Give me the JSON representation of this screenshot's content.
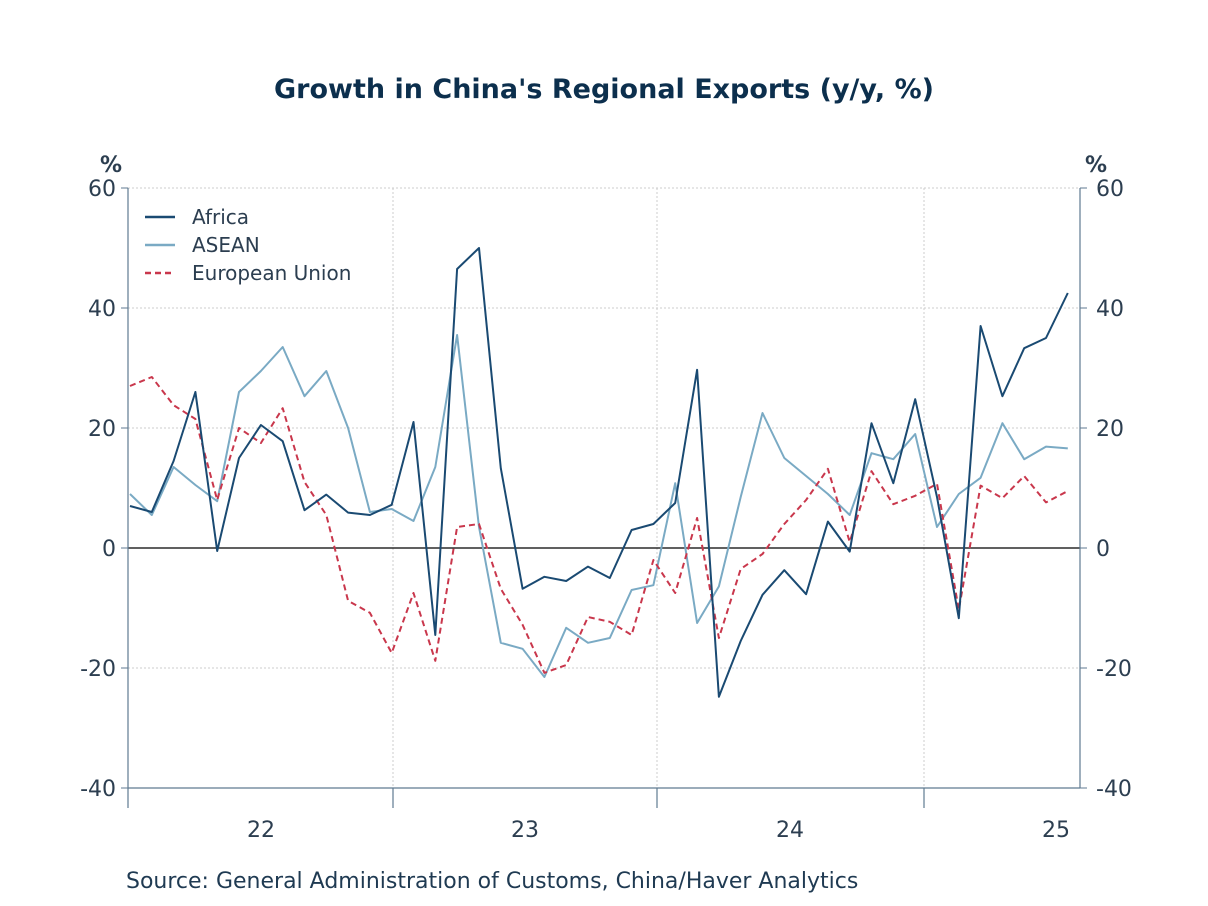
{
  "chart_data": {
    "type": "line",
    "title": "Growth in China's Regional Exports (y/y, %)",
    "ylabel_left": "%",
    "ylabel_right": "%",
    "ylim": [
      -40,
      60
    ],
    "yticks": [
      60,
      40,
      20,
      0,
      -20,
      -40
    ],
    "ytick_labels": [
      "60",
      "40",
      "20",
      "0",
      "-20",
      "-40"
    ],
    "x_ticks": [
      "22",
      "23",
      "24",
      "25"
    ],
    "grid": true,
    "legend_position": "top-left",
    "series": [
      {
        "name": "Africa",
        "color": "#1a4a72",
        "dash": "solid",
        "values": [
          7.0,
          6.0,
          14.5,
          26.0,
          -0.5,
          15.0,
          20.5,
          17.8,
          6.3,
          8.9,
          5.9,
          5.5,
          7.2,
          21.0,
          -14.5,
          46.5,
          50.0,
          13.3,
          -6.8,
          -4.8,
          -5.5,
          -3.1,
          -5.0,
          3.0,
          4.0,
          7.5,
          29.7,
          -24.8,
          -15.5,
          -7.8,
          -3.7,
          -7.7,
          4.4,
          -0.6,
          20.8,
          10.8,
          24.8,
          8.5,
          -11.7,
          37.0,
          25.3,
          33.3,
          35.0,
          42.5
        ]
      },
      {
        "name": "ASEAN",
        "color": "#7aaac4",
        "dash": "solid",
        "values": [
          9.0,
          5.5,
          13.5,
          10.5,
          7.8,
          26.0,
          29.5,
          33.5,
          25.3,
          29.5,
          20.0,
          6.0,
          6.5,
          4.5,
          13.5,
          35.5,
          3.5,
          -15.8,
          -16.8,
          -21.5,
          -13.3,
          -15.8,
          -15.0,
          -7.0,
          -6.2,
          10.8,
          -12.5,
          -6.4,
          8.5,
          22.5,
          15.0,
          12.0,
          9.0,
          5.5,
          15.8,
          14.8,
          19.0,
          3.5,
          9.0,
          11.7,
          20.8,
          14.8,
          16.9,
          16.6
        ]
      },
      {
        "name": "European Union",
        "color": "#c9374c",
        "dash": "dashed",
        "values": [
          27.0,
          28.5,
          23.8,
          21.5,
          8.0,
          20.0,
          17.5,
          23.3,
          11.0,
          5.5,
          -8.8,
          -10.8,
          -17.5,
          -7.5,
          -18.8,
          3.5,
          4.0,
          -6.8,
          -12.8,
          -20.8,
          -19.5,
          -11.5,
          -12.3,
          -14.5,
          -2.0,
          -7.5,
          5.0,
          -15.0,
          -3.5,
          -1.0,
          4.0,
          8.0,
          13.2,
          1.0,
          12.8,
          7.3,
          8.7,
          10.7,
          -10.3,
          10.4,
          8.3,
          12.0,
          7.6,
          9.5
        ]
      }
    ]
  },
  "source_text": "Source:  General Administration of Customs, China/Haver Analytics"
}
